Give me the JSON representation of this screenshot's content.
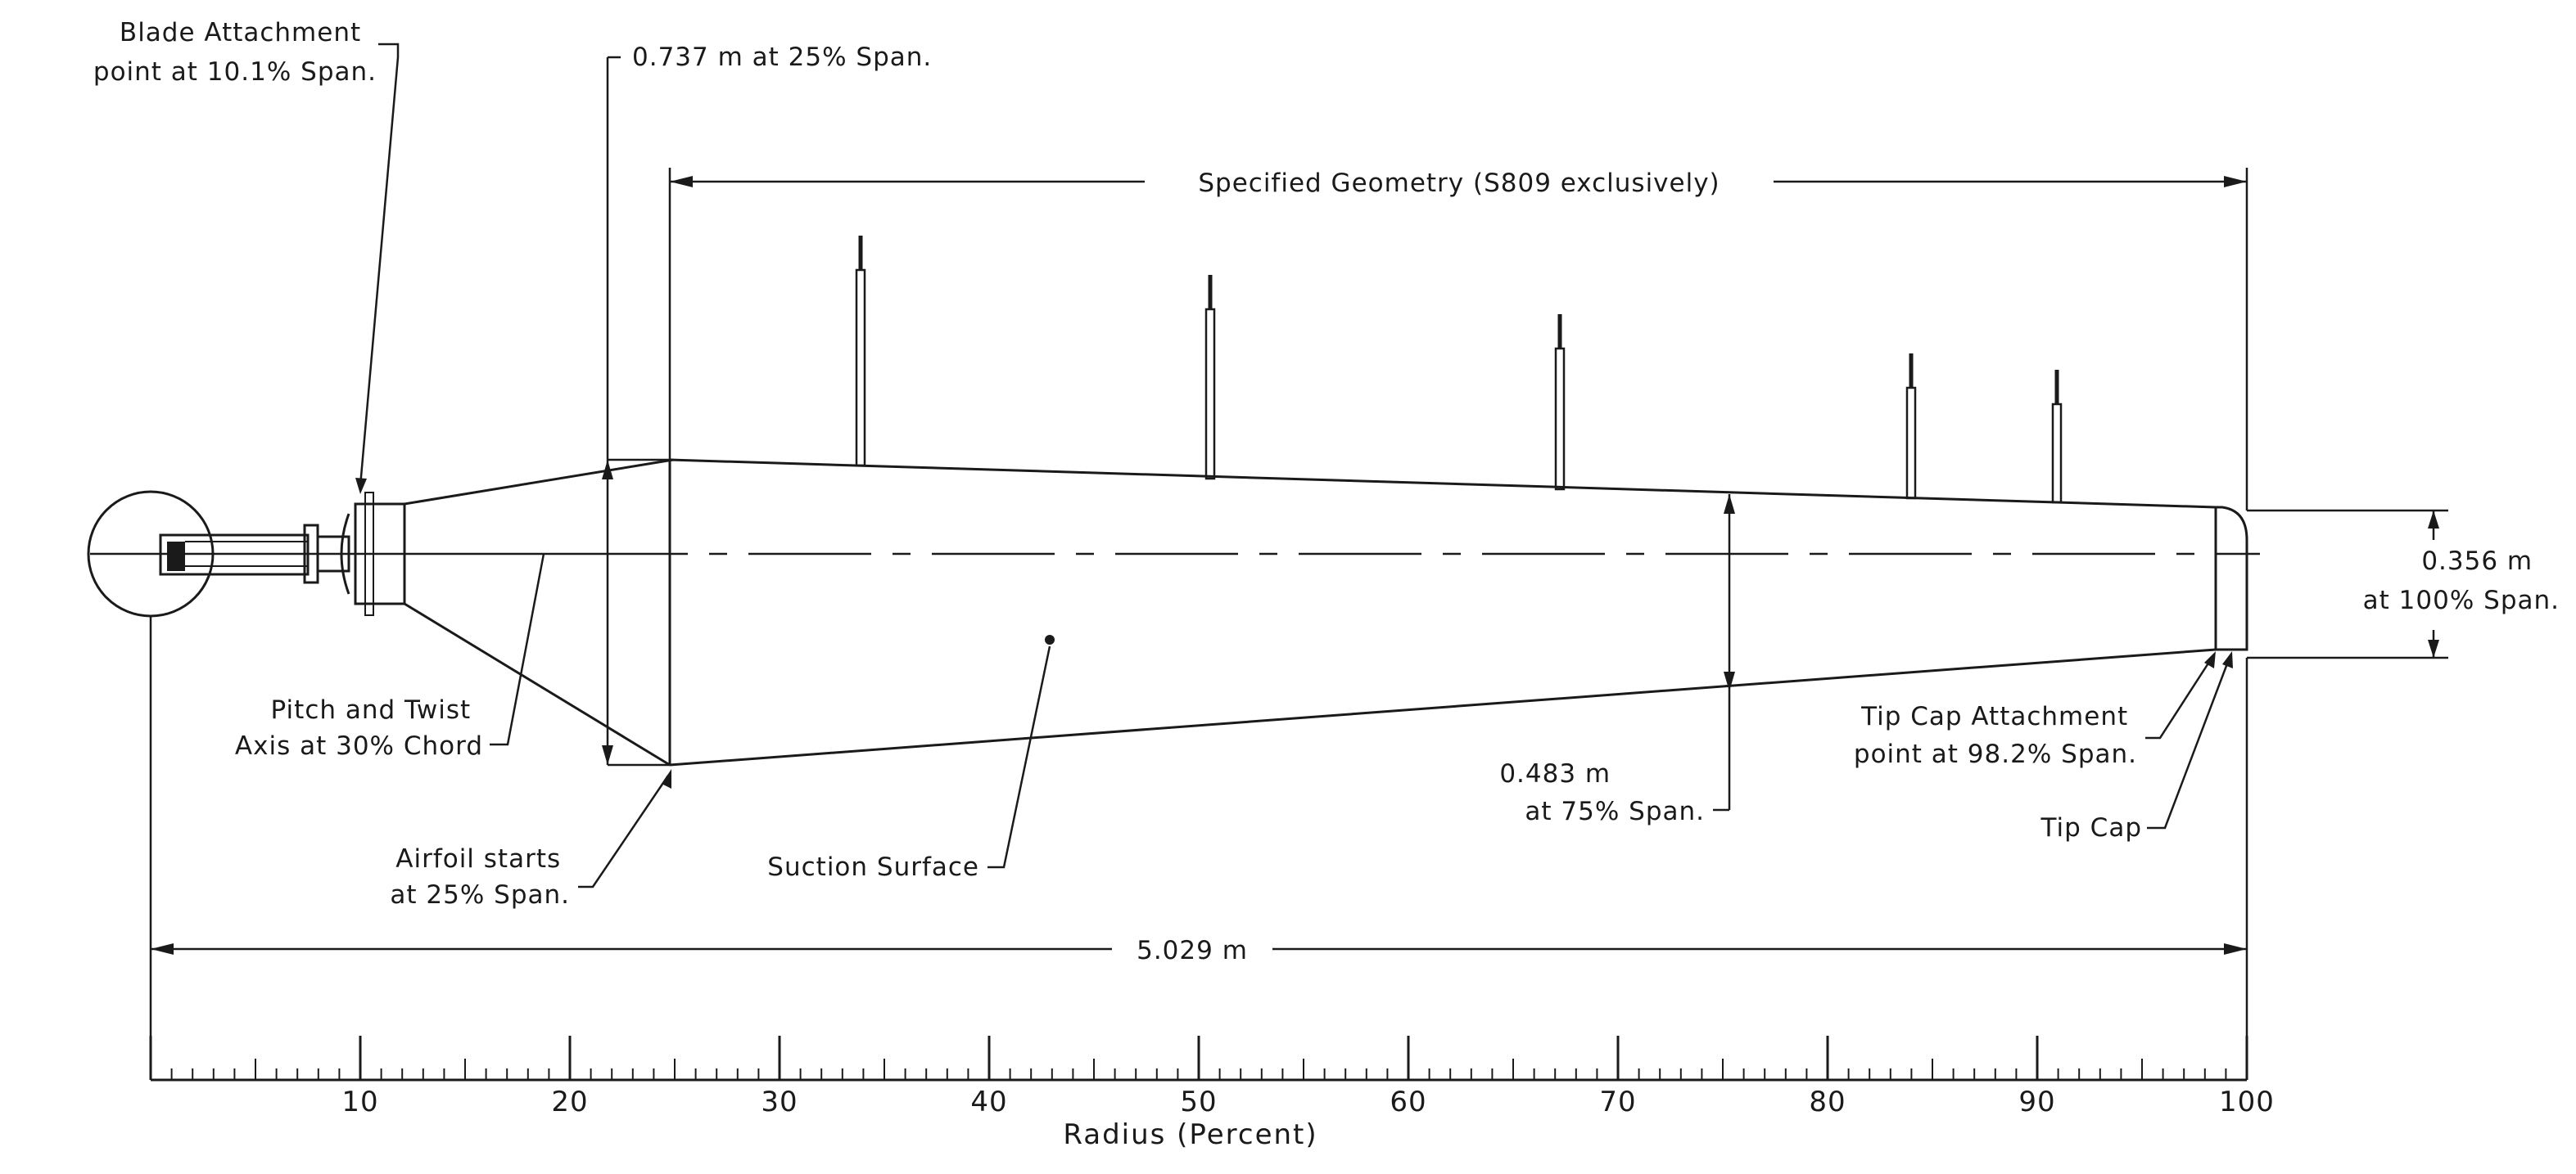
{
  "labels": {
    "blade_attachment": [
      "Blade Attachment",
      "point at 10.1% Span."
    ],
    "chord_25": "0.737  m  at  25%  Span.",
    "specified_geometry": "Specified  Geometry  (S809  exclusively)",
    "chord_100": [
      "0.356  m",
      "at  100%  Span."
    ],
    "pitch_twist": [
      "Pitch  and  Twist",
      "Axis  at  30%  Chord"
    ],
    "airfoil_starts": [
      "Airfoil  starts",
      "at  25%  Span."
    ],
    "suction_surface": "Suction  Surface",
    "chord_75": [
      "0.483  m",
      "at  75%  Span."
    ],
    "tip_cap_attachment": [
      "Tip  Cap  Attachment",
      "point  at  98.2%  Span."
    ],
    "tip_cap": "Tip  Cap",
    "span_length": "5.029  m"
  },
  "axis": {
    "title": "Radius  (Percent)",
    "tick_labels": [
      "10",
      "20",
      "30",
      "40",
      "50",
      "60",
      "70",
      "80",
      "90",
      "100"
    ],
    "min": 0,
    "max": 100
  }
}
